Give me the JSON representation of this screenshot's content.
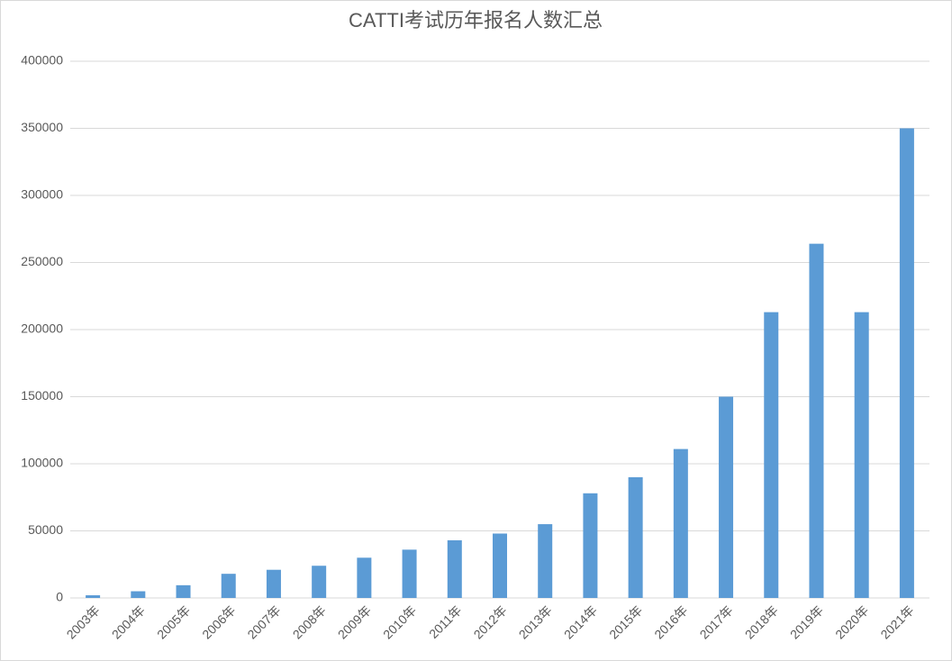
{
  "chart_data": {
    "type": "bar",
    "title": "CATTI考试历年报名人数汇总",
    "categories": [
      "2003年",
      "2004年",
      "2005年",
      "2006年",
      "2007年",
      "2008年",
      "2009年",
      "2010年",
      "2011年",
      "2012年",
      "2013年",
      "2014年",
      "2015年",
      "2016年",
      "2017年",
      "2018年",
      "2019年",
      "2020年",
      "2021年"
    ],
    "values": [
      2000,
      5000,
      9500,
      18000,
      21000,
      24000,
      30000,
      36000,
      43000,
      48000,
      55000,
      78000,
      90000,
      111000,
      150000,
      213000,
      264000,
      213000,
      350000
    ],
    "color": "#5b9bd5",
    "ylim": [
      0,
      400000
    ],
    "yticks": [
      0,
      50000,
      100000,
      150000,
      200000,
      250000,
      300000,
      350000,
      400000
    ],
    "grid": true
  }
}
